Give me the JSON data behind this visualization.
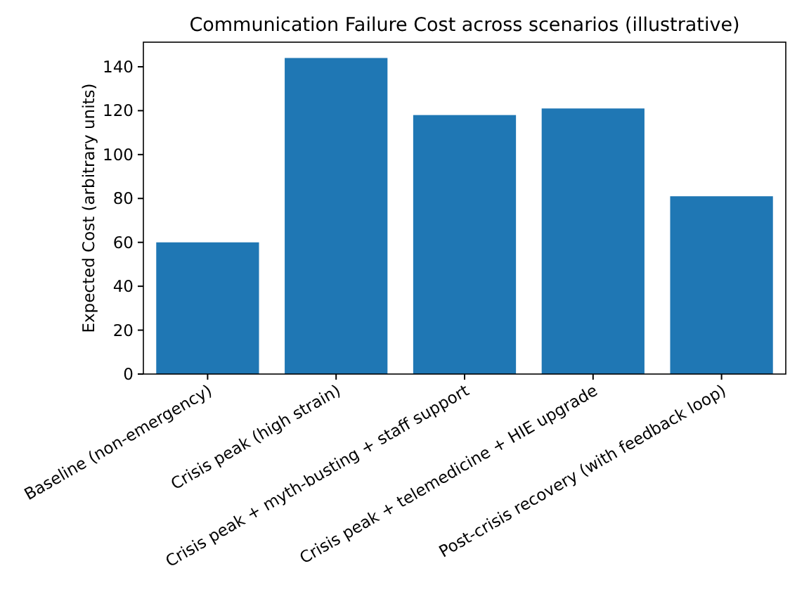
{
  "chart_data": {
    "type": "bar",
    "title": "Communication Failure Cost across scenarios (illustrative)",
    "ylabel": "Expected Cost (arbitrary units)",
    "categories": [
      "Baseline (non-emergency)",
      "Crisis peak (high strain)",
      "Crisis peak + myth-busting + staff support",
      "Crisis peak + telemedicine + HIE upgrade",
      "Post-crisis recovery (with feedback loop)"
    ],
    "values": [
      60,
      144,
      118,
      121,
      81
    ],
    "color": "#1f77b4",
    "ylim": [
      0,
      151.2
    ],
    "yticks": [
      0,
      20,
      40,
      60,
      80,
      100,
      120,
      140
    ]
  }
}
